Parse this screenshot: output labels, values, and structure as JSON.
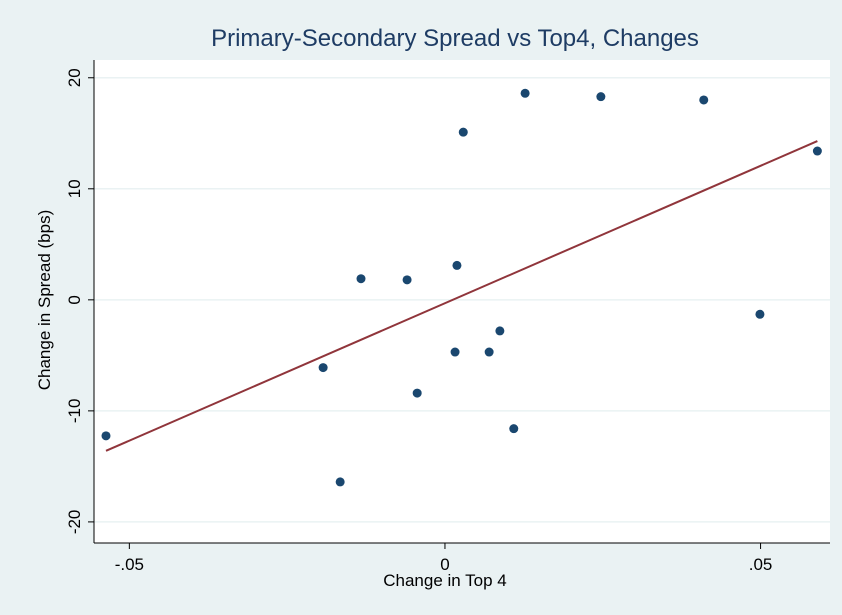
{
  "chart_data": {
    "type": "scatter",
    "title": "Primary-Secondary Spread vs Top4, Changes",
    "x_label": "Change in Top 4",
    "y_label": "Change in Spread (bps)",
    "x": [
      -0.0537,
      -0.0193,
      -0.0166,
      -0.0133,
      -0.006,
      -0.0044,
      0.0016,
      0.0019,
      0.0029,
      0.007,
      0.0087,
      0.0109,
      0.0127,
      0.0247,
      0.041,
      0.0499,
      0.059
    ],
    "values": [
      -12.25,
      -6.1,
      -16.4,
      1.9,
      1.8,
      -8.4,
      -4.7,
      3.1,
      15.1,
      -4.7,
      -2.8,
      -11.6,
      18.6,
      18.3,
      18.0,
      -1.3,
      13.4
    ],
    "color": "#1a476f",
    "fit": {
      "x": [
        -0.0537,
        0.059
      ],
      "y": [
        -13.6,
        14.3
      ],
      "color": "#90353b"
    },
    "xlim": [
      -0.0556,
      0.061
    ],
    "ylim": [
      -21.9,
      21.6
    ],
    "xticks": [
      {
        "value": -0.05,
        "label": "-.05"
      },
      0,
      {
        "value": 0.05,
        "label": ".05"
      }
    ],
    "yticks": [
      -20,
      -10,
      0,
      10,
      20
    ],
    "grid": true
  }
}
